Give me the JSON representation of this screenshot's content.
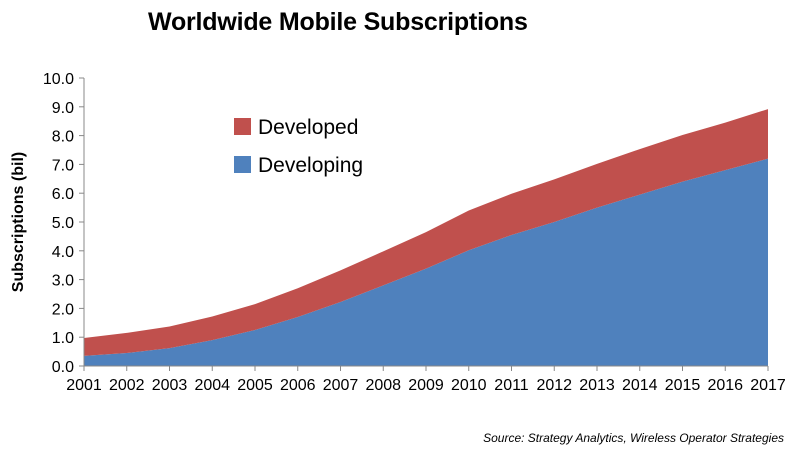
{
  "chart_data": {
    "type": "area",
    "stacked": true,
    "title": "Worldwide Mobile Subscriptions",
    "ylabel": "Subscriptions (bil)",
    "xlabel": "",
    "x": [
      "2001",
      "2002",
      "2003",
      "2004",
      "2005",
      "2006",
      "2007",
      "2008",
      "2009",
      "2010",
      "2011",
      "2012",
      "2013",
      "2014",
      "2015",
      "2016",
      "2017"
    ],
    "ylim": [
      0,
      10
    ],
    "yticks": [
      "0.0",
      "1.0",
      "2.0",
      "3.0",
      "4.0",
      "5.0",
      "6.0",
      "7.0",
      "8.0",
      "9.0",
      "10.0"
    ],
    "grid": false,
    "legend_position": "upper-left",
    "series": [
      {
        "name": "Developing",
        "color": "#4f81bd",
        "values": [
          0.35,
          0.45,
          0.62,
          0.9,
          1.25,
          1.7,
          2.22,
          2.8,
          3.38,
          4.02,
          4.55,
          5.0,
          5.5,
          5.95,
          6.4,
          6.8,
          7.2
        ]
      },
      {
        "name": "Developed",
        "color": "#c0504d",
        "values": [
          0.62,
          0.7,
          0.75,
          0.82,
          0.9,
          1.0,
          1.1,
          1.18,
          1.27,
          1.38,
          1.43,
          1.48,
          1.52,
          1.58,
          1.62,
          1.65,
          1.72
        ]
      }
    ],
    "source": "Source: Strategy Analytics, Wireless Operator Strategies"
  }
}
